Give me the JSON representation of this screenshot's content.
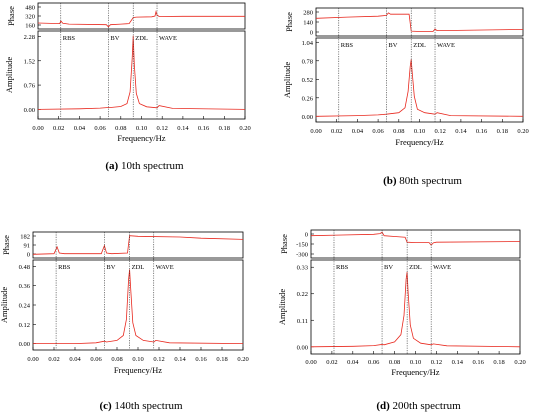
{
  "figure": {
    "panels": [
      {
        "letter": "(a)",
        "caption": "10th spectrum"
      },
      {
        "letter": "(b)",
        "caption": "80th spectrum"
      },
      {
        "letter": "(c)",
        "caption": "140th spectrum"
      },
      {
        "letter": "(d)",
        "caption": "200th spectrum"
      }
    ]
  },
  "chart_data": [
    {
      "type": "line",
      "panel": "a",
      "xlabel": "Frequency/Hz",
      "xlim": [
        0,
        0.2
      ],
      "x_ticks": [
        "0.00",
        "0.02",
        "0.04",
        "0.06",
        "0.08",
        "0.10",
        "0.12",
        "0.14",
        "0.16",
        "0.18",
        "0.20"
      ],
      "markers": [
        {
          "label": "RBS",
          "x": 0.022
        },
        {
          "label": "BV",
          "x": 0.068
        },
        {
          "label": "ZDL",
          "x": 0.092
        },
        {
          "label": "WAVE",
          "x": 0.115
        }
      ],
      "phase": {
        "ylabel": "Phase",
        "yticks": [
          "480",
          "320",
          "160"
        ],
        "ylim": [
          0,
          480
        ],
        "x": [
          0,
          0.021,
          0.022,
          0.024,
          0.03,
          0.066,
          0.068,
          0.07,
          0.08,
          0.088,
          0.092,
          0.095,
          0.11,
          0.113,
          0.114,
          0.115,
          0.117,
          0.12,
          0.14,
          0.2
        ],
        "y": [
          110,
          100,
          150,
          105,
          90,
          80,
          40,
          80,
          90,
          100,
          210,
          220,
          225,
          240,
          320,
          260,
          230,
          230,
          235,
          235
        ]
      },
      "amplitude": {
        "ylabel": "Amplitude",
        "yticks": [
          "2.28",
          "1.52",
          "0.76",
          "0.00"
        ],
        "ylim": [
          -0.3,
          2.45
        ],
        "x": [
          0,
          0.04,
          0.06,
          0.068,
          0.07,
          0.08,
          0.086,
          0.089,
          0.091,
          0.092,
          0.093,
          0.095,
          0.098,
          0.105,
          0.115,
          0.117,
          0.13,
          0.2
        ],
        "y": [
          0.0,
          0.02,
          0.04,
          0.06,
          0.06,
          0.09,
          0.18,
          0.55,
          1.6,
          2.3,
          1.4,
          0.5,
          0.18,
          0.08,
          0.05,
          0.12,
          0.03,
          0.0
        ]
      }
    },
    {
      "type": "line",
      "panel": "b",
      "xlabel": "Frequency/Hz",
      "xlim": [
        0,
        0.2
      ],
      "x_ticks": [
        "0.00",
        "0.02",
        "0.04",
        "0.06",
        "0.08",
        "0.10",
        "0.12",
        "0.14",
        "0.16",
        "0.18",
        "0.20"
      ],
      "markers": [
        {
          "label": "RBS",
          "x": 0.022
        },
        {
          "label": "BV",
          "x": 0.068
        },
        {
          "label": "ZDL",
          "x": 0.092
        },
        {
          "label": "WAVE",
          "x": 0.115
        }
      ],
      "phase": {
        "ylabel": "Phase",
        "yticks": [
          "280",
          "140",
          "0"
        ],
        "ylim": [
          -40,
          300
        ],
        "x": [
          0,
          0.03,
          0.06,
          0.068,
          0.07,
          0.072,
          0.08,
          0.09,
          0.092,
          0.1,
          0.113,
          0.115,
          0.117,
          0.12,
          0.2
        ],
        "y": [
          175,
          190,
          200,
          210,
          240,
          225,
          225,
          225,
          20,
          15,
          15,
          45,
          25,
          25,
          40
        ]
      },
      "amplitude": {
        "ylabel": "Amplitude",
        "yticks": [
          "1.04",
          "0.78",
          "0.52",
          "0.26",
          "0.00"
        ],
        "ylim": [
          -0.08,
          1.1
        ],
        "x": [
          0,
          0.04,
          0.06,
          0.068,
          0.08,
          0.086,
          0.089,
          0.091,
          0.092,
          0.093,
          0.095,
          0.098,
          0.105,
          0.115,
          0.117,
          0.13,
          0.2
        ],
        "y": [
          0.0,
          0.01,
          0.02,
          0.03,
          0.05,
          0.12,
          0.35,
          0.7,
          0.8,
          0.6,
          0.28,
          0.1,
          0.05,
          0.03,
          0.05,
          0.01,
          0.0
        ]
      }
    },
    {
      "type": "line",
      "panel": "c",
      "xlabel": "Frequency/Hz",
      "xlim": [
        0,
        0.2
      ],
      "x_ticks": [
        "0.00",
        "0.02",
        "0.04",
        "0.06",
        "0.08",
        "0.10",
        "0.12",
        "0.14",
        "0.16",
        "0.18",
        "0.20"
      ],
      "markers": [
        {
          "label": "RBS",
          "x": 0.022
        },
        {
          "label": "BV",
          "x": 0.068
        },
        {
          "label": "ZDL",
          "x": 0.092
        },
        {
          "label": "WAVE",
          "x": 0.115
        }
      ],
      "phase": {
        "ylabel": "Phase",
        "yticks": [
          "182",
          "91",
          "0"
        ],
        "ylim": [
          -10,
          200
        ],
        "x": [
          0,
          0.02,
          0.023,
          0.025,
          0.03,
          0.065,
          0.068,
          0.07,
          0.075,
          0.09,
          0.092,
          0.1,
          0.14,
          0.16,
          0.2
        ],
        "y": [
          20,
          25,
          80,
          30,
          25,
          25,
          90,
          30,
          25,
          30,
          170,
          165,
          160,
          150,
          140
        ]
      },
      "amplitude": {
        "ylabel": "Amplitude",
        "yticks": [
          "0.48",
          "0.36",
          "0.24",
          "0.12",
          "0.00"
        ],
        "ylim": [
          -0.04,
          0.52
        ],
        "x": [
          0,
          0.04,
          0.06,
          0.068,
          0.07,
          0.08,
          0.086,
          0.089,
          0.091,
          0.092,
          0.093,
          0.095,
          0.098,
          0.105,
          0.115,
          0.117,
          0.13,
          0.2
        ],
        "y": [
          0.0,
          0.0,
          0.005,
          0.015,
          0.01,
          0.02,
          0.05,
          0.15,
          0.4,
          0.46,
          0.35,
          0.13,
          0.05,
          0.02,
          0.01,
          0.02,
          0.005,
          0.0
        ]
      }
    },
    {
      "type": "line",
      "panel": "d",
      "xlabel": "Frequency/Hz",
      "xlim": [
        0,
        0.2
      ],
      "x_ticks": [
        "0.00",
        "0.02",
        "0.04",
        "0.06",
        "0.08",
        "0.10",
        "0.12",
        "0.14",
        "0.16",
        "0.18",
        "0.20"
      ],
      "markers": [
        {
          "label": "RBS",
          "x": 0.022
        },
        {
          "label": "BV",
          "x": 0.068
        },
        {
          "label": "ZDL",
          "x": 0.092
        },
        {
          "label": "WAVE",
          "x": 0.115
        }
      ],
      "phase": {
        "ylabel": "Phase",
        "yticks": [
          "0",
          "-150",
          "-300"
        ],
        "ylim": [
          -330,
          60
        ],
        "x": [
          0,
          0.03,
          0.06,
          0.066,
          0.068,
          0.07,
          0.08,
          0.09,
          0.092,
          0.1,
          0.113,
          0.115,
          0.117,
          0.12,
          0.2
        ],
        "y": [
          -20,
          -10,
          0,
          10,
          30,
          -20,
          -30,
          -40,
          -110,
          -115,
          -115,
          -150,
          -120,
          -110,
          -100
        ]
      },
      "amplitude": {
        "ylabel": "Amplitude",
        "yticks": [
          "0.33",
          "0.22",
          "0.11",
          "0.00"
        ],
        "ylim": [
          -0.03,
          0.36
        ],
        "x": [
          0,
          0.04,
          0.06,
          0.068,
          0.07,
          0.08,
          0.086,
          0.089,
          0.091,
          0.092,
          0.093,
          0.095,
          0.098,
          0.105,
          0.115,
          0.117,
          0.13,
          0.2
        ],
        "y": [
          0.0,
          0.002,
          0.005,
          0.01,
          0.008,
          0.02,
          0.05,
          0.13,
          0.28,
          0.31,
          0.22,
          0.09,
          0.035,
          0.015,
          0.008,
          0.012,
          0.004,
          0.0
        ]
      }
    }
  ]
}
